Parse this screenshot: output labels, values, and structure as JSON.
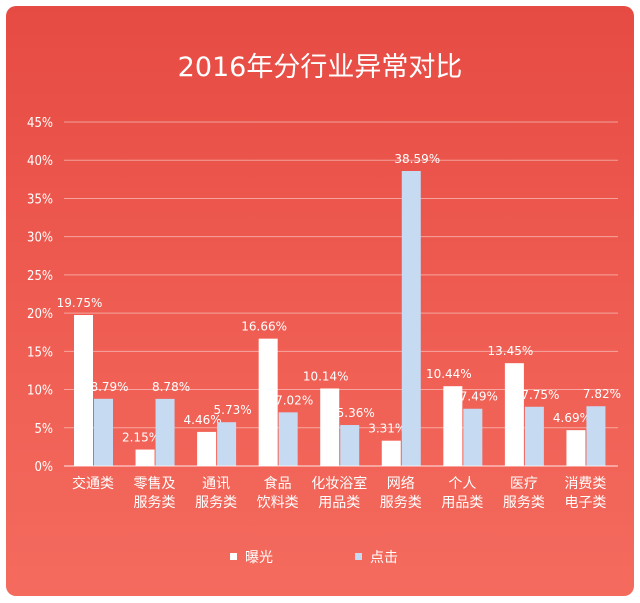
{
  "chart_data": {
    "type": "bar",
    "title": "2016年分行业异常对比",
    "categories": [
      [
        "交通类"
      ],
      [
        "零售及",
        "服务类"
      ],
      [
        "通讯",
        "服务类"
      ],
      [
        "食品",
        "饮料类"
      ],
      [
        "化妆浴室",
        "用品类"
      ],
      [
        "网络",
        "服务类"
      ],
      [
        "个人",
        "用品类"
      ],
      [
        "医疗",
        "服务类"
      ],
      [
        "消费类",
        "电子类"
      ]
    ],
    "series": [
      {
        "name": "曝光",
        "color": "#ffffff",
        "values": [
          19.75,
          2.15,
          4.46,
          16.66,
          10.14,
          3.31,
          10.44,
          13.45,
          4.69
        ],
        "labels": [
          "19.75%",
          "2.15%",
          "4.46%",
          "16.66%",
          "10.14%",
          "3.31%",
          "10.44%",
          "13.45%",
          "4.69%"
        ]
      },
      {
        "name": "点击",
        "color": "#c6daf2",
        "values": [
          8.79,
          8.78,
          5.73,
          7.02,
          5.36,
          38.59,
          7.49,
          7.75,
          7.82
        ],
        "labels": [
          "8.79%",
          "8.78%",
          "5.73%",
          "7.02%",
          "5.36%",
          "38.59%",
          "7.49%",
          "7.75%",
          "7.82%"
        ]
      }
    ],
    "yticks": [
      "0%",
      "5%",
      "10%",
      "15%",
      "20%",
      "25%",
      "30%",
      "35%",
      "40%",
      "45%"
    ],
    "ylim": [
      0,
      45
    ],
    "grid": true,
    "legend_position": "bottom"
  }
}
